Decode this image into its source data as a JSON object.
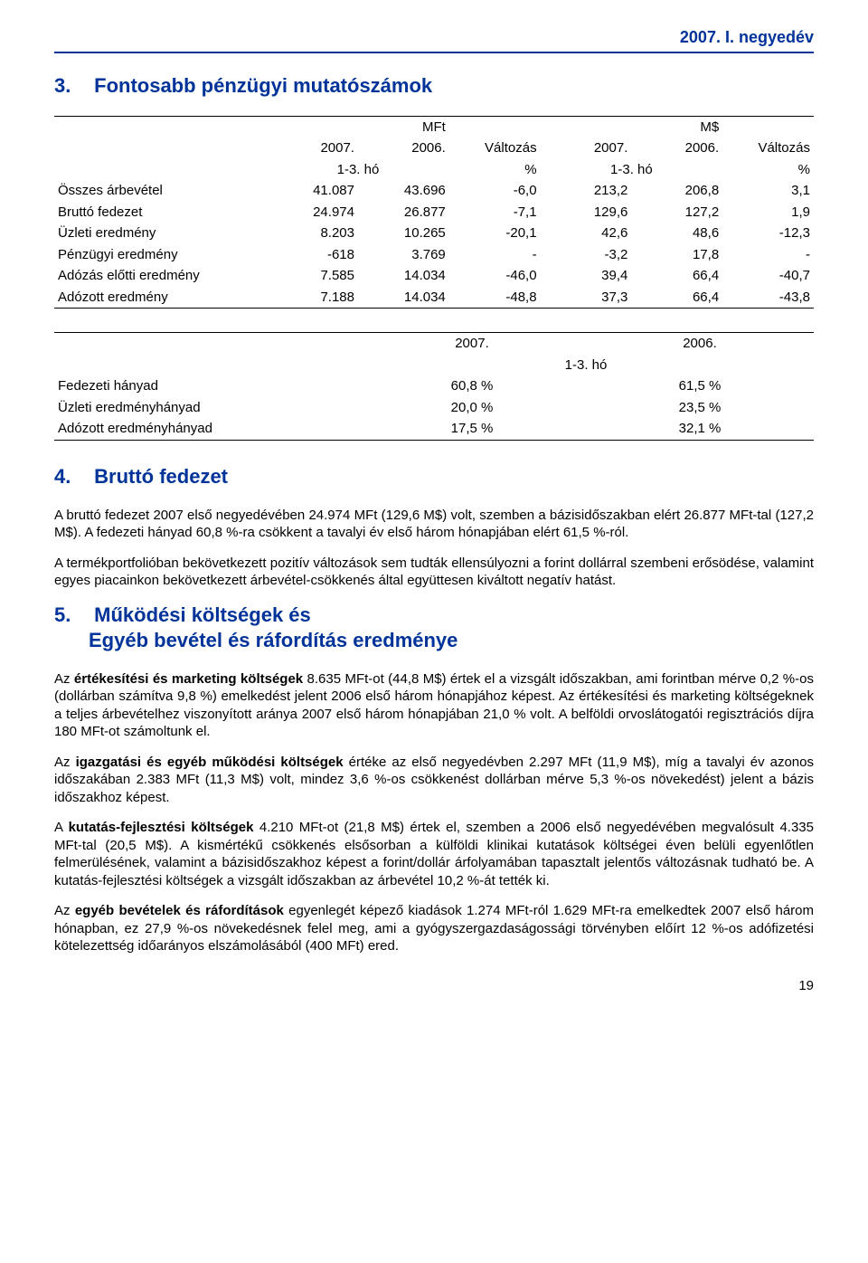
{
  "header": {
    "period": "2007. I. negyedév"
  },
  "section3": {
    "num": "3.",
    "title": "Fontosabb pénzügyi mutatószámok",
    "table": {
      "group_left": "MFt",
      "group_right": "M$",
      "h_2007": "2007.",
      "h_2006": "2006.",
      "h_valtozas": "Változás",
      "sub_left": "1-3. hó",
      "sub_pct": "%",
      "rows": [
        {
          "label": "Összes árbevétel",
          "a": "41.087",
          "b": "43.696",
          "c": "-6,0",
          "d": "213,2",
          "e": "206,8",
          "f": "3,1"
        },
        {
          "label": "Bruttó fedezet",
          "a": "24.974",
          "b": "26.877",
          "c": "-7,1",
          "d": "129,6",
          "e": "127,2",
          "f": "1,9"
        },
        {
          "label": "Üzleti eredmény",
          "a": "8.203",
          "b": "10.265",
          "c": "-20,1",
          "d": "42,6",
          "e": "48,6",
          "f": "-12,3"
        },
        {
          "label": "Pénzügyi eredmény",
          "a": "-618",
          "b": "3.769",
          "c": "-",
          "d": "-3,2",
          "e": "17,8",
          "f": "-"
        },
        {
          "label": "Adózás előtti eredmény",
          "a": "7.585",
          "b": "14.034",
          "c": "-46,0",
          "d": "39,4",
          "e": "66,4",
          "f": "-40,7"
        },
        {
          "label": "Adózott eredmény",
          "a": "7.188",
          "b": "14.034",
          "c": "-48,8",
          "d": "37,3",
          "e": "66,4",
          "f": "-43,8"
        }
      ]
    }
  },
  "ratios": {
    "h_2007": "2007.",
    "h_2006": "2006.",
    "sub": "1-3. hó",
    "rows": [
      {
        "label": "Fedezeti hányad",
        "a": "60,8 %",
        "b": "61,5 %"
      },
      {
        "label": "Üzleti eredményhányad",
        "a": "20,0 %",
        "b": "23,5 %"
      },
      {
        "label": "Adózott eredményhányad",
        "a": "17,5 %",
        "b": "32,1 %"
      }
    ]
  },
  "section4": {
    "num": "4.",
    "title": "Bruttó fedezet",
    "p1": "A bruttó fedezet 2007 első negyedévében 24.974 MFt (129,6 M$) volt, szemben a bázisidőszakban elért 26.877 MFt-tal (127,2 M$). A fedezeti hányad 60,8 %-ra csökkent a tavalyi év első három hónapjában elért 61,5 %-ról.",
    "p2": "A termékportfolióban bekövetkezett pozitív változások sem tudták ellensúlyozni a forint dollárral szembeni erősödése, valamint egyes piacainkon bekövetkezett árbevétel-csökkenés által együttesen kiváltott negatív hatást."
  },
  "section5": {
    "num": "5.",
    "title_l1": "Működési költségek és",
    "title_l2": "Egyéb bevétel és ráfordítás eredménye",
    "p1a": "Az ",
    "p1b": "értékesítési és marketing költségek",
    "p1c": " 8.635 MFt-ot (44,8 M$) értek el a vizsgált időszakban, ami forintban mérve 0,2 %-os (dollárban számítva 9,8 %) emelkedést jelent 2006 első három hónapjához képest. Az értékesítési és marketing költségeknek a teljes árbevételhez viszonyított aránya 2007 első három hónapjában 21,0 % volt. A belföldi orvoslátogatói regisztrációs díjra 180 MFt-ot számoltunk el.",
    "p2a": "Az ",
    "p2b": "igazgatási és egyéb működési költségek",
    "p2c": " értéke az első negyedévben 2.297 MFt (11,9 M$), míg a tavalyi év azonos időszakában 2.383 MFt (11,3 M$) volt, mindez 3,6 %-os csökkenést dollárban mérve 5,3 %-os növekedést) jelent a bázis időszakhoz képest.",
    "p3a": "A ",
    "p3b": "kutatás-fejlesztési költségek",
    "p3c": " 4.210 MFt-ot (21,8 M$) értek el, szemben a 2006 első negyedévében megvalósult 4.335 MFt-tal (20,5 M$). A kismértékű csökkenés elsősorban a külföldi klinikai kutatások költségei éven belüli egyenlőtlen felmerülésének, valamint a bázisidőszakhoz képest a forint/dollár árfolyamában tapasztalt jelentős változásnak tudható be. A kutatás-fejlesztési költségek a vizsgált időszakban az árbevétel 10,2 %-át tették ki.",
    "p4a": "Az ",
    "p4b": "egyéb bevételek és ráfordítások",
    "p4c": " egyenlegét képező kiadások 1.274 MFt-ról 1.629 MFt-ra emelkedtek 2007 első három hónapban, ez 27,9 %-os növekedésnek felel meg, ami a gyógyszergazdaságossági törvényben előírt 12 %-os adófizetési kötelezettség időarányos elszámolásából (400 MFt) ered."
  },
  "page_number": "19"
}
